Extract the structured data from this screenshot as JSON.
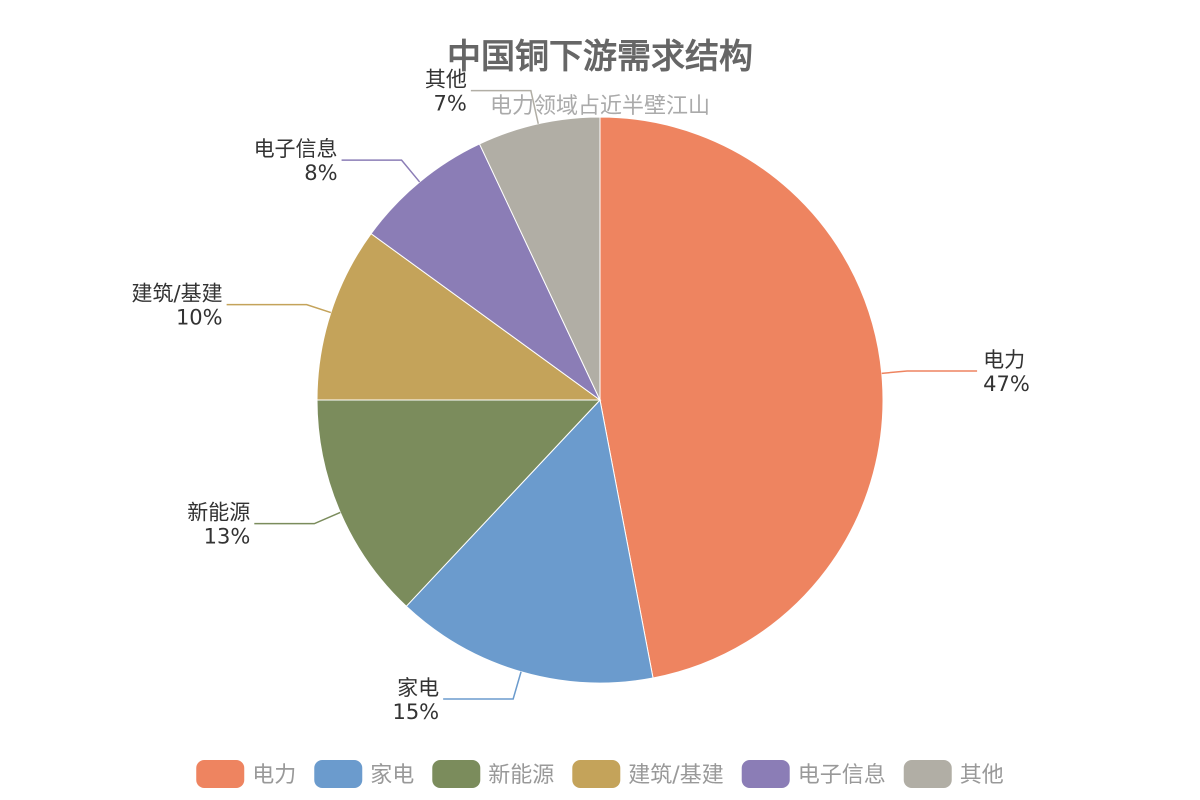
{
  "chart_data": {
    "type": "pie",
    "title": "中国铜下游需求结构",
    "subtitle": "电力领域占近半壁江山",
    "categories": [
      "电力",
      "家电",
      "新能源",
      "建筑/基建",
      "电子信息",
      "其他"
    ],
    "values": [
      47,
      15,
      13,
      10,
      8,
      7
    ],
    "value_labels": [
      "47%",
      "15%",
      "13%",
      "10%",
      "8%",
      "7%"
    ],
    "colors": [
      "#ee8460",
      "#6b9bcd",
      "#7b8c5c",
      "#c4a35a",
      "#8b7db6",
      "#b1aea5"
    ],
    "legend_position": "bottom",
    "start_angle_deg": 0,
    "direction": "clockwise"
  }
}
